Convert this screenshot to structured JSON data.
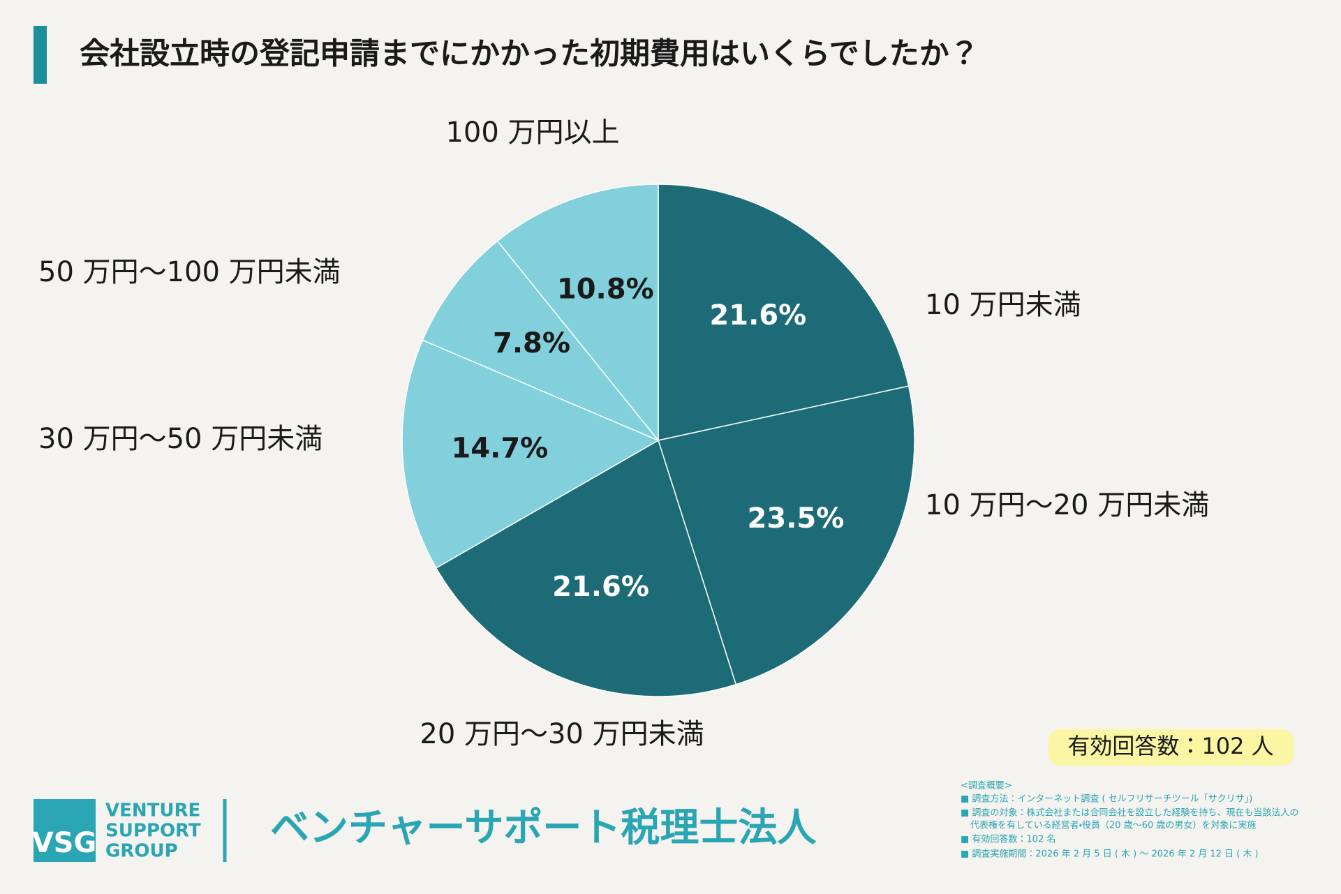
{
  "chart_data": {
    "type": "pie",
    "title": "会社設立時の登記申請までにかかった初期費用はいくらでしたか？",
    "categories": [
      "10 万円未満",
      "10 万円～20 万円未満",
      "20 万円～30 万円未満",
      "30 万円～50 万円未満",
      "50 万円～100 万円未満",
      "100 万円以上"
    ],
    "values": [
      21.6,
      23.5,
      21.6,
      14.7,
      7.8,
      10.8
    ],
    "value_labels": [
      "21.6%",
      "23.5%",
      "21.6%",
      "14.7%",
      "7.8%",
      "10.8%"
    ],
    "colors": [
      "#1e6b78",
      "#1e6b78",
      "#1e6b78",
      "#82d0dc",
      "#82d0dc",
      "#82d0dc"
    ],
    "direction": "clockwise",
    "start": "top",
    "note": "有効回答数：102 人"
  },
  "footer": {
    "logo": {
      "mark": "VSG",
      "lines": [
        "VENTURE",
        "SUPPORT",
        "GROUP"
      ]
    },
    "company": "ベンチャーサポート税理士法人",
    "survey": [
      "<調査概要>",
      "■ 調査方法：インターネット調査 ( セルフリサーチツール「サクリサ」)",
      "■ 調査の対象：株式会社または合同会社を設立した経験を持ち、現在も当該法人の",
      "代表権を有している経営者・役員（20 歳～60 歳の男女）を対象に実施",
      "■ 有効回答数：102 名",
      "■ 調査実施期間：2026 年 2 月 5 日 ( 木 ) ～ 2026 年 2 月 12 日 ( 木 )"
    ]
  }
}
